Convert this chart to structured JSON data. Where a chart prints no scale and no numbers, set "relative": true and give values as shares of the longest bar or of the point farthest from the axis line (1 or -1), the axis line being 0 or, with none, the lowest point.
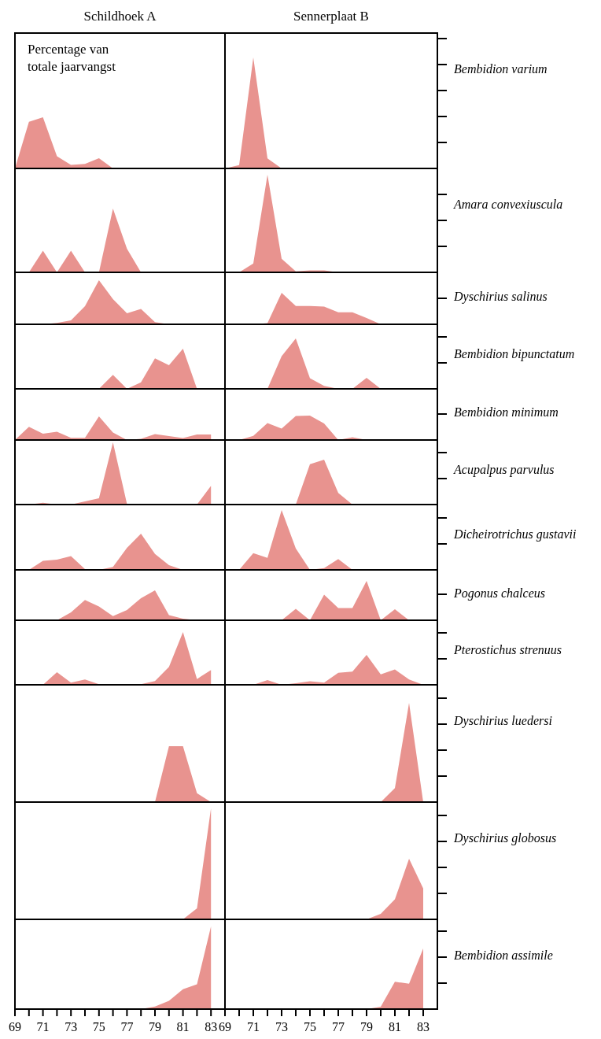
{
  "chart_data": [
    {
      "type": "area",
      "title": "Schildhoek A",
      "relative": true,
      "tick_labels": false,
      "categories": [
        null,
        null,
        null,
        null,
        null,
        null,
        null,
        null,
        null,
        null,
        null,
        null,
        null,
        null,
        null
      ],
      "annotations": [
        "Percentage van totale jaarvangst"
      ],
      "series": [
        {
          "color": "#e8938f",
          "values": [
            0,
            0.91,
            1,
            0.24,
            0.07,
            0.09,
            0.2,
            0,
            0,
            0,
            0,
            0,
            0,
            0,
            0
          ]
        }
      ]
    },
    {
      "type": "area",
      "title": "Sennerplaat B",
      "ylabel": "Bembidion varium",
      "relative": true,
      "tick_labels": false,
      "categories": [
        null,
        null,
        null,
        null,
        null,
        null,
        null,
        null,
        null,
        null,
        null,
        null,
        null,
        null,
        null
      ],
      "series": [
        {
          "color": "#e8938f",
          "values": [
            0,
            0.03,
            1,
            0.09,
            0,
            0,
            0,
            0,
            0,
            0,
            0,
            0,
            0,
            0,
            0
          ]
        }
      ]
    },
    {
      "type": "area",
      "relative": true,
      "tick_labels": false,
      "categories": [
        null,
        null,
        null,
        null,
        null,
        null,
        null,
        null,
        null,
        null,
        null,
        null,
        null,
        null,
        null
      ],
      "series": [
        {
          "color": "#e8938f",
          "values": [
            0,
            0,
            0.34,
            0,
            0.34,
            0,
            0,
            1,
            0.37,
            0,
            0,
            0,
            0,
            0,
            0
          ]
        }
      ]
    },
    {
      "type": "area",
      "ylabel": "Amara convexiuscula",
      "relative": true,
      "tick_labels": false,
      "categories": [
        null,
        null,
        null,
        null,
        null,
        null,
        null,
        null,
        null,
        null,
        null,
        null,
        null,
        null,
        null
      ],
      "series": [
        {
          "color": "#e8938f",
          "values": [
            0,
            0,
            0.09,
            1,
            0.14,
            0.01,
            0.02,
            0.02,
            0,
            0,
            0,
            0,
            0,
            0,
            0
          ]
        }
      ]
    },
    {
      "type": "area",
      "relative": true,
      "tick_labels": false,
      "categories": [
        null,
        null,
        null,
        null,
        null,
        null,
        null,
        null,
        null,
        null,
        null,
        null,
        null,
        null,
        null
      ],
      "series": [
        {
          "color": "#e8938f",
          "values": [
            0,
            0,
            0,
            0.03,
            0.09,
            0.41,
            1,
            0.57,
            0.25,
            0.35,
            0.05,
            0,
            0,
            0,
            0
          ]
        }
      ]
    },
    {
      "type": "area",
      "ylabel": "Dyschirius salinus",
      "relative": true,
      "tick_labels": false,
      "categories": [
        null,
        null,
        null,
        null,
        null,
        null,
        null,
        null,
        null,
        null,
        null,
        null,
        null,
        null,
        null
      ],
      "series": [
        {
          "color": "#e8938f",
          "values": [
            0,
            0,
            0,
            0.04,
            1,
            0.58,
            0.58,
            0.56,
            0.38,
            0.38,
            0.2,
            0,
            0,
            0,
            0
          ]
        }
      ]
    },
    {
      "type": "area",
      "relative": true,
      "tick_labels": false,
      "categories": [
        null,
        null,
        null,
        null,
        null,
        null,
        null,
        null,
        null,
        null,
        null,
        null,
        null,
        null,
        null
      ],
      "series": [
        {
          "color": "#e8938f",
          "values": [
            0,
            0,
            0,
            0,
            0,
            0,
            0,
            0.35,
            0,
            0.16,
            0.76,
            0.59,
            1,
            0,
            0
          ]
        }
      ]
    },
    {
      "type": "area",
      "ylabel": "Bembidion bipunctatum",
      "relative": true,
      "tick_labels": false,
      "categories": [
        null,
        null,
        null,
        null,
        null,
        null,
        null,
        null,
        null,
        null,
        null,
        null,
        null,
        null,
        null
      ],
      "series": [
        {
          "color": "#e8938f",
          "values": [
            0,
            0,
            0,
            0,
            0.65,
            1,
            0.21,
            0.06,
            0,
            0,
            0.22,
            0,
            0,
            0,
            0
          ]
        }
      ]
    },
    {
      "type": "area",
      "relative": true,
      "tick_labels": false,
      "categories": [
        null,
        null,
        null,
        null,
        null,
        null,
        null,
        null,
        null,
        null,
        null,
        null,
        null,
        null,
        null
      ],
      "series": [
        {
          "color": "#e8938f",
          "values": [
            0,
            0.56,
            0.27,
            0.35,
            0.09,
            0.09,
            1,
            0.32,
            0,
            0.05,
            0.25,
            0.17,
            0.08,
            0.23,
            0.23
          ]
        }
      ]
    },
    {
      "type": "area",
      "ylabel": "Bembidion minimum",
      "relative": true,
      "tick_labels": false,
      "categories": [
        null,
        null,
        null,
        null,
        null,
        null,
        null,
        null,
        null,
        null,
        null,
        null,
        null,
        null,
        null
      ],
      "series": [
        {
          "color": "#e8938f",
          "values": [
            0,
            0,
            0.17,
            0.69,
            0.47,
            0.98,
            1,
            0.68,
            0,
            0.11,
            0,
            0,
            0,
            0,
            0
          ]
        }
      ]
    },
    {
      "type": "area",
      "relative": true,
      "tick_labels": false,
      "categories": [
        null,
        null,
        null,
        null,
        null,
        null,
        null,
        null,
        null,
        null,
        null,
        null,
        null,
        null,
        null
      ],
      "series": [
        {
          "color": "#e8938f",
          "values": [
            0,
            0,
            0.03,
            0,
            0,
            0.05,
            0.1,
            1,
            0.01,
            0.01,
            0.01,
            0.01,
            0.01,
            0,
            0.3
          ]
        }
      ]
    },
    {
      "type": "area",
      "ylabel": "Acupalpus parvulus",
      "relative": true,
      "tick_labels": false,
      "categories": [
        null,
        null,
        null,
        null,
        null,
        null,
        null,
        null,
        null,
        null,
        null,
        null,
        null,
        null,
        null
      ],
      "series": [
        {
          "color": "#e8938f",
          "values": [
            0,
            0,
            0,
            0,
            0,
            0,
            0.9,
            1,
            0.26,
            0,
            0,
            0,
            0,
            0,
            0
          ]
        }
      ]
    },
    {
      "type": "area",
      "relative": true,
      "tick_labels": false,
      "categories": [
        null,
        null,
        null,
        null,
        null,
        null,
        null,
        null,
        null,
        null,
        null,
        null,
        null,
        null,
        null
      ],
      "series": [
        {
          "color": "#e8938f",
          "values": [
            0,
            0,
            0.25,
            0.28,
            0.38,
            0.02,
            0,
            0.08,
            0.61,
            1,
            0.44,
            0.13,
            0,
            0,
            0
          ]
        }
      ]
    },
    {
      "type": "area",
      "ylabel": "Dicheirotrichus gustavii",
      "relative": true,
      "tick_labels": false,
      "categories": [
        null,
        null,
        null,
        null,
        null,
        null,
        null,
        null,
        null,
        null,
        null,
        null,
        null,
        null,
        null
      ],
      "series": [
        {
          "color": "#e8938f",
          "values": [
            0,
            0,
            0.28,
            0.2,
            1,
            0.36,
            0,
            0.03,
            0.18,
            0,
            0,
            0,
            0,
            0,
            0
          ]
        }
      ]
    },
    {
      "type": "area",
      "relative": true,
      "tick_labels": false,
      "categories": [
        null,
        null,
        null,
        null,
        null,
        null,
        null,
        null,
        null,
        null,
        null,
        null,
        null,
        null,
        null
      ],
      "series": [
        {
          "color": "#e8938f",
          "values": [
            0,
            0,
            0,
            0,
            0.26,
            0.68,
            0.46,
            0.14,
            0.34,
            0.74,
            1,
            0.17,
            0.05,
            0,
            0
          ]
        }
      ]
    },
    {
      "type": "area",
      "ylabel": "Pogonus chalceus",
      "relative": true,
      "tick_labels": false,
      "categories": [
        null,
        null,
        null,
        null,
        null,
        null,
        null,
        null,
        null,
        null,
        null,
        null,
        null,
        null,
        null
      ],
      "series": [
        {
          "color": "#e8938f",
          "values": [
            0,
            0,
            0,
            0,
            0,
            0.29,
            0,
            0.65,
            0.31,
            0.31,
            1,
            0,
            0.28,
            0,
            0
          ]
        }
      ]
    },
    {
      "type": "area",
      "relative": true,
      "tick_labels": false,
      "categories": [
        null,
        null,
        null,
        null,
        null,
        null,
        null,
        null,
        null,
        null,
        null,
        null,
        null,
        null,
        null
      ],
      "series": [
        {
          "color": "#e8938f",
          "values": [
            0,
            0,
            0,
            0.24,
            0.04,
            0.1,
            0.01,
            0,
            0,
            0.01,
            0.07,
            0.34,
            1,
            0.11,
            0.28
          ]
        }
      ]
    },
    {
      "type": "area",
      "ylabel": "Pterostichus strenuus",
      "relative": true,
      "tick_labels": false,
      "categories": [
        null,
        null,
        null,
        null,
        null,
        null,
        null,
        null,
        null,
        null,
        null,
        null,
        null,
        null,
        null
      ],
      "series": [
        {
          "color": "#e8938f",
          "values": [
            0,
            0,
            0,
            0.16,
            0,
            0.05,
            0.12,
            0.07,
            0.4,
            0.44,
            1,
            0.35,
            0.51,
            0.18,
            0
          ]
        }
      ]
    },
    {
      "type": "area",
      "relative": true,
      "tick_labels": false,
      "categories": [
        null,
        null,
        null,
        null,
        null,
        null,
        null,
        null,
        null,
        null,
        null,
        null,
        null,
        null,
        null
      ],
      "series": [
        {
          "color": "#e8938f",
          "values": [
            0,
            0,
            0,
            0,
            0,
            0,
            0,
            0,
            0,
            0,
            0,
            1,
            1,
            0.16,
            0
          ]
        }
      ]
    },
    {
      "type": "area",
      "ylabel": "Dyschirius luedersi",
      "relative": true,
      "tick_labels": false,
      "categories": [
        null,
        null,
        null,
        null,
        null,
        null,
        null,
        null,
        null,
        null,
        null,
        null,
        null,
        null,
        null
      ],
      "series": [
        {
          "color": "#e8938f",
          "values": [
            0,
            0,
            0,
            0,
            0,
            0,
            0,
            0,
            0,
            0,
            0,
            0,
            0.14,
            1,
            0
          ]
        }
      ]
    },
    {
      "type": "area",
      "relative": true,
      "tick_labels": false,
      "categories": [
        null,
        null,
        null,
        null,
        null,
        null,
        null,
        null,
        null,
        null,
        null,
        null,
        null,
        null,
        null
      ],
      "series": [
        {
          "color": "#e8938f",
          "values": [
            0,
            0,
            0,
            0,
            0,
            0,
            0,
            0,
            0,
            0,
            0,
            0,
            0,
            0.1,
            1
          ]
        }
      ]
    },
    {
      "type": "area",
      "ylabel": "Dyschirius globosus",
      "relative": true,
      "tick_labels": false,
      "categories": [
        null,
        null,
        null,
        null,
        null,
        null,
        null,
        null,
        null,
        null,
        null,
        null,
        null,
        null,
        null
      ],
      "series": [
        {
          "color": "#e8938f",
          "values": [
            0,
            0,
            0,
            0,
            0,
            0,
            0,
            0,
            0,
            0,
            0,
            0.09,
            0.33,
            1,
            0.51
          ]
        }
      ]
    },
    {
      "type": "area",
      "relative": true,
      "tick_labels": "x",
      "xlim": [
        69,
        84
      ],
      "xticks": [
        69,
        {
          "value": 70,
          "label": null
        },
        71,
        {
          "value": 72,
          "label": null
        },
        73,
        {
          "value": 74,
          "label": null
        },
        75,
        {
          "value": 76,
          "label": null
        },
        77,
        {
          "value": 78,
          "label": null
        },
        79,
        {
          "value": 80,
          "label": null
        },
        81,
        {
          "value": 82,
          "label": null
        },
        83
      ],
      "x": [
        69,
        70,
        71,
        72,
        73,
        74,
        75,
        76,
        77,
        78,
        79,
        80,
        81,
        82,
        83
      ],
      "series": [
        {
          "color": "#e8938f",
          "values": [
            0,
            0,
            0,
            0,
            0,
            0,
            0,
            0,
            0,
            0,
            0.03,
            0.1,
            0.24,
            0.3,
            1
          ]
        }
      ]
    },
    {
      "type": "area",
      "ylabel": "Bembidion assimile",
      "relative": true,
      "tick_labels": "x",
      "xlim": [
        69,
        84
      ],
      "xticks": [
        69,
        {
          "value": 70,
          "label": null
        },
        71,
        {
          "value": 72,
          "label": null
        },
        73,
        {
          "value": 74,
          "label": null
        },
        75,
        {
          "value": 76,
          "label": null
        },
        77,
        {
          "value": 78,
          "label": null
        },
        79,
        {
          "value": 80,
          "label": null
        },
        81,
        {
          "value": 82,
          "label": null
        },
        83
      ],
      "x": [
        69,
        70,
        71,
        72,
        73,
        74,
        75,
        76,
        77,
        78,
        79,
        80,
        81,
        82,
        83
      ],
      "series": [
        {
          "color": "#e8938f",
          "values": [
            0,
            0,
            0,
            0,
            0,
            0,
            0,
            0,
            0,
            0,
            0,
            0.04,
            0.45,
            0.42,
            1
          ]
        }
      ]
    }
  ]
}
